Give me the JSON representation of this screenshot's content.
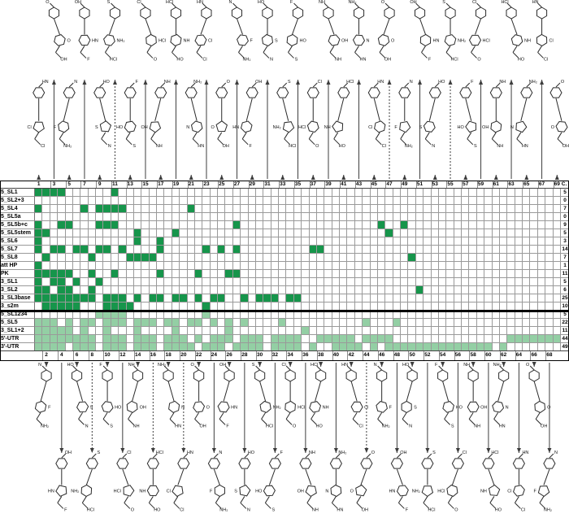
{
  "chart_data": {
    "type": "heatmap",
    "description_note": "hit matrix: small molecules (columns) vs RNA elements (rows)",
    "count_column_label": "C.",
    "n_columns": 69,
    "columns": {
      "top_numbers": [
        1,
        3,
        5,
        7,
        9,
        11,
        13,
        15,
        17,
        19,
        21,
        23,
        25,
        27,
        29,
        31,
        33,
        35,
        37,
        39,
        41,
        43,
        45,
        47,
        49,
        51,
        53,
        55,
        57,
        59,
        61,
        63,
        65,
        67,
        69
      ],
      "bottom_numbers": [
        2,
        4,
        6,
        8,
        10,
        12,
        14,
        16,
        18,
        20,
        22,
        24,
        26,
        28,
        30,
        32,
        34,
        36,
        38,
        40,
        42,
        44,
        46,
        48,
        50,
        52,
        54,
        56,
        58,
        60,
        62,
        64,
        66,
        68
      ]
    },
    "rows": [
      {
        "label": "5_SL1",
        "shade": "dark",
        "count": 5,
        "hits": [
          1,
          2,
          3,
          4,
          11
        ]
      },
      {
        "label": "5_SL2+3",
        "shade": "dark",
        "count": 0,
        "hits": []
      },
      {
        "label": "5_SL4",
        "shade": "dark",
        "count": 7,
        "hits": [
          1,
          7,
          9,
          10,
          11,
          12,
          21
        ]
      },
      {
        "label": "5_SL5a",
        "shade": "dark",
        "count": 0,
        "hits": []
      },
      {
        "label": "5_SL5b+c",
        "shade": "dark",
        "count": 9,
        "hits": [
          1,
          4,
          5,
          9,
          10,
          11,
          27,
          46,
          49
        ]
      },
      {
        "label": "5_SL5stem",
        "shade": "dark",
        "count": 5,
        "hits": [
          1,
          2,
          14,
          19,
          47
        ]
      },
      {
        "label": "5_SL6",
        "shade": "dark",
        "count": 3,
        "hits": [
          1,
          14,
          17
        ]
      },
      {
        "label": "5_SL7",
        "shade": "dark",
        "count": 14,
        "hits": [
          1,
          3,
          4,
          6,
          7,
          9,
          10,
          12,
          17,
          23,
          25,
          27,
          37,
          38
        ]
      },
      {
        "label": "5_SL8",
        "shade": "dark",
        "count": 7,
        "hits": [
          2,
          8,
          13,
          14,
          15,
          16,
          50
        ]
      },
      {
        "label": "att HP",
        "shade": "dark",
        "count": 1,
        "hits": [
          1
        ]
      },
      {
        "label": "PK",
        "shade": "dark",
        "count": 11,
        "hits": [
          1,
          2,
          3,
          4,
          5,
          8,
          11,
          17,
          22,
          26,
          27
        ]
      },
      {
        "label": "3_SL1",
        "shade": "dark",
        "count": 5,
        "hits": [
          1,
          3,
          4,
          6,
          9
        ]
      },
      {
        "label": "3_SL2",
        "shade": "dark",
        "count": 6,
        "hits": [
          1,
          2,
          4,
          5,
          8,
          51
        ]
      },
      {
        "label": "3_SL3base",
        "shade": "dark",
        "count": 25,
        "hits": [
          1,
          2,
          3,
          4,
          5,
          6,
          7,
          8,
          10,
          11,
          12,
          14,
          16,
          17,
          19,
          20,
          22,
          24,
          25,
          28,
          30,
          31,
          32,
          34,
          35
        ]
      },
      {
        "label": "3_s2m",
        "shade": "dark",
        "count": 10,
        "hits": [
          2,
          3,
          4,
          5,
          6,
          10,
          11,
          12,
          13,
          23
        ]
      },
      {
        "label": "5_SL1234",
        "shade": "light",
        "count": 5,
        "hits": [
          9,
          10,
          11,
          12,
          23
        ]
      },
      {
        "label": "5_SL5",
        "shade": "light",
        "count": 22,
        "hits": [
          1,
          2,
          3,
          5,
          7,
          8,
          10,
          11,
          12,
          14,
          15,
          16,
          18,
          19,
          21,
          22,
          24,
          26,
          28,
          33,
          44,
          48
        ]
      },
      {
        "label": "3_SL1+2",
        "shade": "light",
        "count": 11,
        "hits": [
          1,
          2,
          3,
          4,
          5,
          7,
          10,
          14,
          19,
          26,
          36
        ]
      },
      {
        "label": "5'-UTR",
        "shade": "light",
        "count": 44,
        "hits": [
          1,
          2,
          3,
          4,
          5,
          6,
          7,
          8,
          10,
          11,
          12,
          14,
          15,
          16,
          18,
          19,
          20,
          22,
          24,
          25,
          26,
          28,
          29,
          30,
          32,
          33,
          34,
          35,
          38,
          39,
          40,
          41,
          42,
          44,
          45,
          46,
          47,
          63,
          64,
          65,
          66,
          67,
          68,
          69
        ]
      },
      {
        "label": "3'-UTR",
        "shade": "light",
        "count": 49,
        "hits": [
          1,
          2,
          3,
          4,
          6,
          7,
          8,
          10,
          11,
          12,
          14,
          15,
          16,
          18,
          19,
          20,
          21,
          23,
          24,
          25,
          27,
          28,
          29,
          30,
          32,
          33,
          34,
          35,
          37,
          40,
          41,
          42,
          43,
          45,
          47,
          48,
          49,
          50,
          51,
          52,
          53,
          54,
          55,
          56,
          57,
          58,
          59,
          60,
          62
        ]
      }
    ],
    "section_break_after_row": 15,
    "colors": {
      "hit_dark": "#16954b",
      "hit_light": "#93cfa4",
      "grid_line": "#9a9a9a",
      "frame": "#000000"
    },
    "structures": {
      "top_dotted_arrow_cols": [
        11,
        47,
        55
      ],
      "bottom_dotted_arrow_cols": [
        8,
        16,
        20,
        44
      ],
      "atom_labels": [
        "NH₂",
        "HN",
        "O",
        "N",
        "OH",
        "HO",
        "S",
        "F",
        "Cl",
        "NH",
        "HCl"
      ]
    }
  }
}
